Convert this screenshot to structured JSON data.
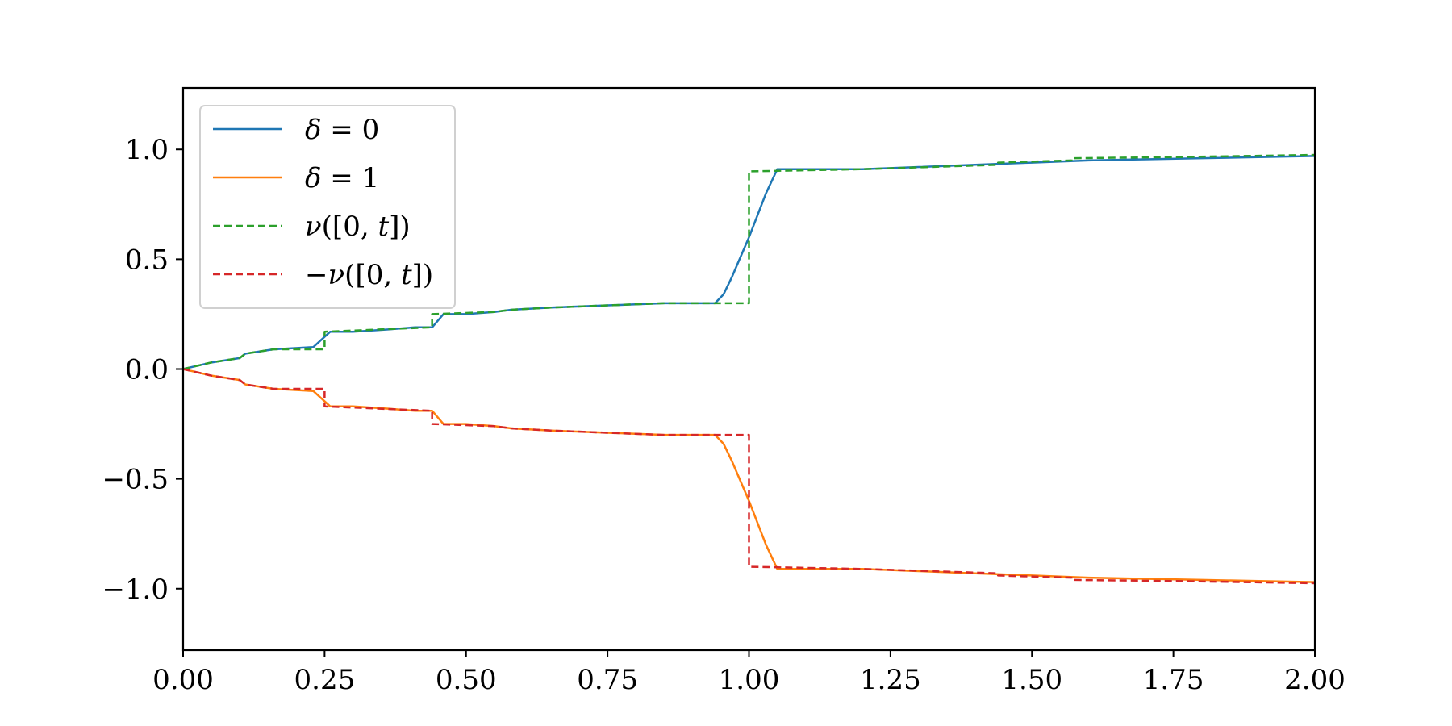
{
  "chart_data": {
    "type": "line",
    "xlim": [
      0.0,
      2.0
    ],
    "ylim": [
      -1.28,
      1.28
    ],
    "x_ticks": [
      {
        "value": 0.0,
        "label": "0.00"
      },
      {
        "value": 0.25,
        "label": "0.25"
      },
      {
        "value": 0.5,
        "label": "0.50"
      },
      {
        "value": 0.75,
        "label": "0.75"
      },
      {
        "value": 1.0,
        "label": "1.00"
      },
      {
        "value": 1.25,
        "label": "1.25"
      },
      {
        "value": 1.5,
        "label": "1.50"
      },
      {
        "value": 1.75,
        "label": "1.75"
      },
      {
        "value": 2.0,
        "label": "2.00"
      }
    ],
    "y_ticks": [
      {
        "value": 1.0,
        "label": "1.0"
      },
      {
        "value": 0.5,
        "label": "0.5"
      },
      {
        "value": 0.0,
        "label": "0.0"
      },
      {
        "value": -0.5,
        "label": "−0.5"
      },
      {
        "value": -1.0,
        "label": "−1.0"
      }
    ],
    "grid": false,
    "legend_position": "top-left",
    "series": [
      {
        "name": "δ = 0",
        "color": "#1f77b4",
        "style": "solid",
        "x": [
          0.0,
          0.05,
          0.1,
          0.11,
          0.16,
          0.23,
          0.26,
          0.3,
          0.36,
          0.41,
          0.44,
          0.46,
          0.5,
          0.55,
          0.58,
          0.65,
          0.75,
          0.85,
          0.94,
          0.955,
          0.97,
          1.0,
          1.03,
          1.05,
          1.1,
          1.2,
          1.3,
          1.4,
          1.5,
          1.6,
          1.7,
          1.8,
          1.9,
          2.0
        ],
        "y": [
          0.0,
          0.03,
          0.05,
          0.07,
          0.09,
          0.1,
          0.17,
          0.17,
          0.18,
          0.19,
          0.19,
          0.25,
          0.25,
          0.26,
          0.27,
          0.28,
          0.29,
          0.3,
          0.3,
          0.34,
          0.42,
          0.6,
          0.8,
          0.91,
          0.91,
          0.91,
          0.92,
          0.93,
          0.94,
          0.95,
          0.955,
          0.96,
          0.965,
          0.97
        ]
      },
      {
        "name": "δ = 1",
        "color": "#ff7f0e",
        "style": "solid",
        "x": [
          0.0,
          0.05,
          0.1,
          0.11,
          0.16,
          0.23,
          0.26,
          0.3,
          0.36,
          0.41,
          0.44,
          0.46,
          0.5,
          0.55,
          0.58,
          0.65,
          0.75,
          0.85,
          0.94,
          0.955,
          0.97,
          1.0,
          1.03,
          1.05,
          1.1,
          1.2,
          1.3,
          1.4,
          1.5,
          1.6,
          1.7,
          1.8,
          1.9,
          2.0
        ],
        "y": [
          0.0,
          -0.03,
          -0.05,
          -0.07,
          -0.09,
          -0.1,
          -0.17,
          -0.17,
          -0.18,
          -0.19,
          -0.19,
          -0.25,
          -0.25,
          -0.26,
          -0.27,
          -0.28,
          -0.29,
          -0.3,
          -0.3,
          -0.34,
          -0.42,
          -0.6,
          -0.8,
          -0.91,
          -0.91,
          -0.91,
          -0.92,
          -0.93,
          -0.94,
          -0.95,
          -0.955,
          -0.96,
          -0.965,
          -0.97
        ]
      },
      {
        "name": "ν([0, t])",
        "color": "#2ca02c",
        "style": "dashed",
        "x": [
          0.0,
          0.05,
          0.1,
          0.11,
          0.16,
          0.25,
          0.25,
          0.44,
          0.44,
          0.55,
          0.58,
          0.65,
          0.75,
          0.85,
          1.0,
          1.0,
          1.2,
          1.44,
          1.44,
          1.57,
          1.57,
          1.75,
          2.0
        ],
        "y": [
          0.0,
          0.03,
          0.05,
          0.07,
          0.09,
          0.09,
          0.17,
          0.19,
          0.25,
          0.26,
          0.27,
          0.28,
          0.29,
          0.3,
          0.3,
          0.9,
          0.91,
          0.93,
          0.94,
          0.95,
          0.96,
          0.965,
          0.975
        ]
      },
      {
        "name": "−ν([0, t])",
        "color": "#d62728",
        "style": "dashed",
        "x": [
          0.0,
          0.05,
          0.1,
          0.11,
          0.16,
          0.25,
          0.25,
          0.44,
          0.44,
          0.55,
          0.58,
          0.65,
          0.75,
          0.85,
          1.0,
          1.0,
          1.2,
          1.44,
          1.44,
          1.57,
          1.57,
          1.75,
          2.0
        ],
        "y": [
          0.0,
          -0.03,
          -0.05,
          -0.07,
          -0.09,
          -0.09,
          -0.17,
          -0.19,
          -0.25,
          -0.26,
          -0.27,
          -0.28,
          -0.29,
          -0.3,
          -0.3,
          -0.9,
          -0.91,
          -0.93,
          -0.94,
          -0.95,
          -0.96,
          -0.965,
          -0.975
        ]
      }
    ]
  }
}
